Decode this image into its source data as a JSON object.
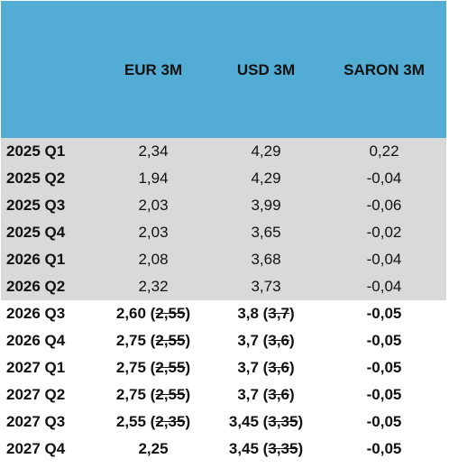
{
  "table": {
    "header": [
      "EUR 3M",
      "USD 3M",
      "SARON 3M"
    ],
    "rows": [
      {
        "label": "2025 Q1",
        "shaded": true,
        "bold": false,
        "cells": [
          [
            {
              "text": "2,34"
            }
          ],
          [
            {
              "text": "4,29"
            }
          ],
          [
            {
              "text": "0,22"
            }
          ]
        ]
      },
      {
        "label": "2025 Q2",
        "shaded": true,
        "bold": false,
        "cells": [
          [
            {
              "text": "1,94"
            }
          ],
          [
            {
              "text": "4,29"
            }
          ],
          [
            {
              "text": "-0,04"
            }
          ]
        ]
      },
      {
        "label": "2025 Q3",
        "shaded": true,
        "bold": false,
        "cells": [
          [
            {
              "text": "2,03"
            }
          ],
          [
            {
              "text": "3,99"
            }
          ],
          [
            {
              "text": "-0,06"
            }
          ]
        ]
      },
      {
        "label": "2025 Q4",
        "shaded": true,
        "bold": false,
        "cells": [
          [
            {
              "text": "2,03"
            }
          ],
          [
            {
              "text": "3,65"
            }
          ],
          [
            {
              "text": "-0,02"
            }
          ]
        ]
      },
      {
        "label": "2026 Q1",
        "shaded": true,
        "bold": false,
        "cells": [
          [
            {
              "text": "2,08"
            }
          ],
          [
            {
              "text": "3,68"
            }
          ],
          [
            {
              "text": "-0,04"
            }
          ]
        ]
      },
      {
        "label": "2026 Q2",
        "shaded": true,
        "bold": false,
        "cells": [
          [
            {
              "text": "2,32"
            }
          ],
          [
            {
              "text": "3,73"
            }
          ],
          [
            {
              "text": "-0,04"
            }
          ]
        ]
      },
      {
        "label": "2026 Q3",
        "shaded": false,
        "bold": true,
        "cells": [
          [
            {
              "text": "2,60 ("
            },
            {
              "text": "2,55",
              "struck": true
            },
            {
              "text": ")"
            }
          ],
          [
            {
              "text": "3,8 ("
            },
            {
              "text": "3,7",
              "struck": true
            },
            {
              "text": ")"
            }
          ],
          [
            {
              "text": "-0,05"
            }
          ]
        ]
      },
      {
        "label": "2026 Q4",
        "shaded": false,
        "bold": true,
        "cells": [
          [
            {
              "text": "2,75 ("
            },
            {
              "text": "2,55",
              "struck": true
            },
            {
              "text": ")"
            }
          ],
          [
            {
              "text": "3,7 ("
            },
            {
              "text": "3,6",
              "struck": true
            },
            {
              "text": ")"
            }
          ],
          [
            {
              "text": "-0,05"
            }
          ]
        ]
      },
      {
        "label": "2027 Q1",
        "shaded": false,
        "bold": true,
        "cells": [
          [
            {
              "text": "2,75 ("
            },
            {
              "text": "2,55",
              "struck": true
            },
            {
              "text": ")"
            }
          ],
          [
            {
              "text": "3,7 ("
            },
            {
              "text": "3,6",
              "struck": true
            },
            {
              "text": ")"
            }
          ],
          [
            {
              "text": "-0,05"
            }
          ]
        ]
      },
      {
        "label": "2027 Q2",
        "shaded": false,
        "bold": true,
        "cells": [
          [
            {
              "text": "2,75 ("
            },
            {
              "text": "2,55",
              "struck": true
            },
            {
              "text": ")"
            }
          ],
          [
            {
              "text": "3,7 ("
            },
            {
              "text": "3,6",
              "struck": true
            },
            {
              "text": ")"
            }
          ],
          [
            {
              "text": "-0,05"
            }
          ]
        ]
      },
      {
        "label": "2027 Q3",
        "shaded": false,
        "bold": true,
        "cells": [
          [
            {
              "text": "2,55 ("
            },
            {
              "text": "2,35",
              "struck": true
            },
            {
              "text": ")"
            }
          ],
          [
            {
              "text": "3,45 ("
            },
            {
              "text": "3,35",
              "struck": true
            },
            {
              "text": ")"
            }
          ],
          [
            {
              "text": "-0,05"
            }
          ]
        ]
      },
      {
        "label": "2027 Q4",
        "shaded": false,
        "bold": true,
        "cells": [
          [
            {
              "text": "2,25"
            }
          ],
          [
            {
              "text": "3,45 ("
            },
            {
              "text": "3,35",
              "struck": true
            },
            {
              "text": ")"
            }
          ],
          [
            {
              "text": "-0,05"
            }
          ]
        ]
      }
    ]
  }
}
